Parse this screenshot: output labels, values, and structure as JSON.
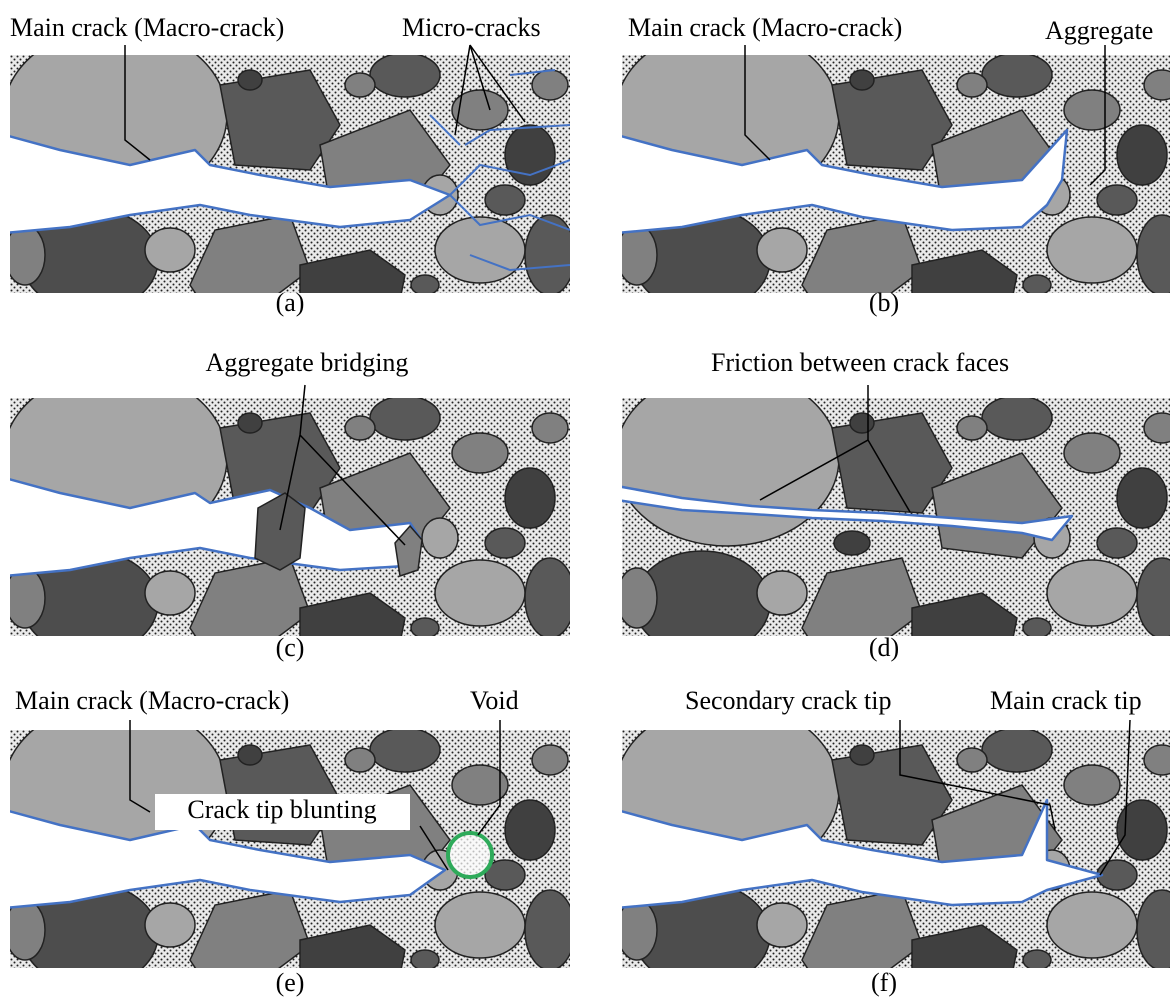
{
  "panels": [
    {
      "label": "(a)",
      "annotations": [
        "Main crack (Macro-crack)",
        "Micro-cracks"
      ]
    },
    {
      "label": "(b)",
      "annotations": [
        "Main crack (Macro-crack)",
        "Aggregate"
      ]
    },
    {
      "label": "(c)",
      "annotations": [
        "Aggregate bridging"
      ]
    },
    {
      "label": "(d)",
      "annotations": [
        "Friction between crack faces"
      ]
    },
    {
      "label": "(e)",
      "annotations": [
        "Main crack (Macro-crack)",
        "Void",
        "Crack tip blunting"
      ]
    },
    {
      "label": "(f)",
      "annotations": [
        "Secondary crack tip",
        "Main crack tip"
      ]
    }
  ]
}
